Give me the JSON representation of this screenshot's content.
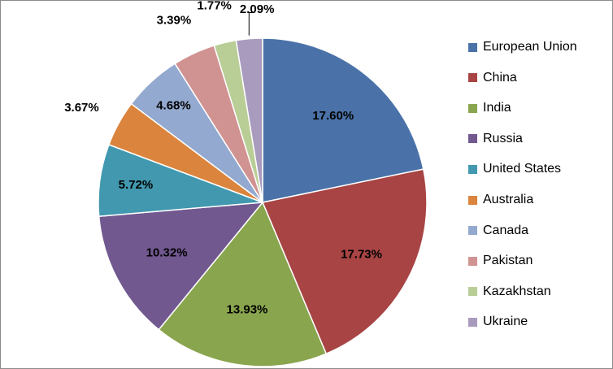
{
  "chart_data": {
    "type": "pie",
    "categories": [
      "European Union",
      "China",
      "India",
      "Russia",
      "United States",
      "Australia",
      "Canada",
      "Pakistan",
      "Kazakhstan",
      "Ukraine"
    ],
    "values": [
      17.6,
      17.73,
      13.93,
      10.32,
      5.72,
      3.67,
      4.68,
      3.39,
      1.77,
      2.09
    ],
    "labels": [
      "17.60%",
      "17.73%",
      "13.93%",
      "10.32%",
      "5.72%",
      "3.67%",
      "4.68%",
      "3.39%",
      "1.77%",
      "2.09%"
    ],
    "colors": [
      "#4a72a8",
      "#a84444",
      "#89a54e",
      "#71588f",
      "#4198af",
      "#db843d",
      "#93a9cf",
      "#d19392",
      "#b9cd96",
      "#a99bbd"
    ],
    "legend_position": "right",
    "start": "12 o'clock, clockwise"
  }
}
